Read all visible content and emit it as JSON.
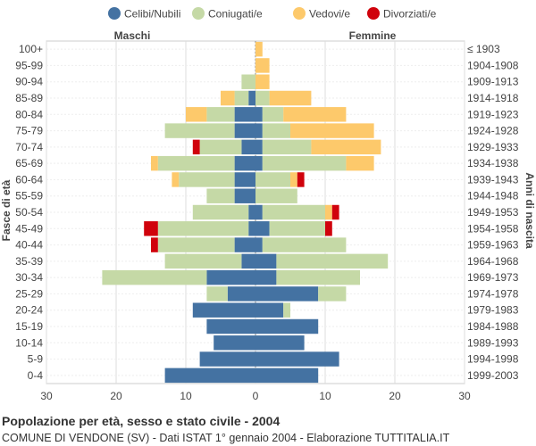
{
  "chart_data": {
    "type": "bar",
    "orientation": "horizontal-pyramid",
    "legend": [
      {
        "label": "Celibi/Nubili",
        "color": "#4472a2"
      },
      {
        "label": "Coniugati/e",
        "color": "#c5d9a6"
      },
      {
        "label": "Vedovi/e",
        "color": "#fdc96b"
      },
      {
        "label": "Divorziati/e",
        "color": "#d0020c"
      }
    ],
    "legend_position": "top",
    "left_header": "Maschi",
    "right_header": "Femmine",
    "ylabel_left": "Fasce di età",
    "ylabel_right": "Anni di nascita",
    "xlim": [
      -30,
      30
    ],
    "xticks": [
      -30,
      -20,
      -10,
      0,
      10,
      20,
      30
    ],
    "xtick_labels": [
      "30",
      "20",
      "10",
      "0",
      "10",
      "20",
      "30"
    ],
    "grid": true,
    "age_groups": [
      "100+",
      "95-99",
      "90-94",
      "85-89",
      "80-84",
      "75-79",
      "70-74",
      "65-69",
      "60-64",
      "55-59",
      "50-54",
      "45-49",
      "40-44",
      "35-39",
      "30-34",
      "25-29",
      "20-24",
      "15-19",
      "10-14",
      "5-9",
      "0-4"
    ],
    "birth_years": [
      "≤ 1903",
      "1904-1908",
      "1909-1913",
      "1914-1918",
      "1919-1923",
      "1924-1928",
      "1929-1933",
      "1934-1938",
      "1939-1943",
      "1944-1948",
      "1949-1953",
      "1954-1958",
      "1959-1963",
      "1964-1968",
      "1969-1973",
      "1974-1978",
      "1979-1983",
      "1984-1988",
      "1989-1993",
      "1994-1998",
      "1999-2003"
    ],
    "males": {
      "celibi": [
        0,
        0,
        0,
        1,
        3,
        3,
        2,
        3,
        3,
        3,
        1,
        1,
        3,
        2,
        7,
        4,
        9,
        7,
        6,
        8,
        13
      ],
      "coniugati": [
        0,
        0,
        2,
        2,
        4,
        10,
        6,
        11,
        8,
        4,
        8,
        13,
        11,
        11,
        15,
        3,
        0,
        0,
        0,
        0,
        0
      ],
      "vedovi": [
        0,
        0,
        0,
        2,
        3,
        0,
        0,
        1,
        1,
        0,
        0,
        0,
        0,
        0,
        0,
        0,
        0,
        0,
        0,
        0,
        0
      ],
      "divorziati": [
        0,
        0,
        0,
        0,
        0,
        0,
        1,
        0,
        0,
        0,
        0,
        2,
        1,
        0,
        0,
        0,
        0,
        0,
        0,
        0,
        0
      ]
    },
    "females": {
      "nubili": [
        0,
        0,
        0,
        0,
        1,
        1,
        1,
        1,
        0,
        0,
        1,
        2,
        1,
        3,
        3,
        9,
        4,
        9,
        7,
        12,
        9
      ],
      "coniugate": [
        0,
        0,
        0,
        2,
        3,
        4,
        7,
        12,
        5,
        6,
        9,
        8,
        12,
        16,
        12,
        4,
        1,
        0,
        0,
        0,
        0
      ],
      "vedove": [
        1,
        2,
        2,
        6,
        9,
        12,
        10,
        4,
        1,
        0,
        1,
        0,
        0,
        0,
        0,
        0,
        0,
        0,
        0,
        0,
        0
      ],
      "divorziate": [
        0,
        0,
        0,
        0,
        0,
        0,
        0,
        0,
        1,
        0,
        1,
        1,
        0,
        0,
        0,
        0,
        0,
        0,
        0,
        0,
        0
      ]
    }
  },
  "caption": {
    "title": "Popolazione per età, sesso e stato civile - 2004",
    "subtitle": "COMUNE DI VENDONE (SV) - Dati ISTAT 1° gennaio 2004 - Elaborazione TUTTITALIA.IT"
  }
}
